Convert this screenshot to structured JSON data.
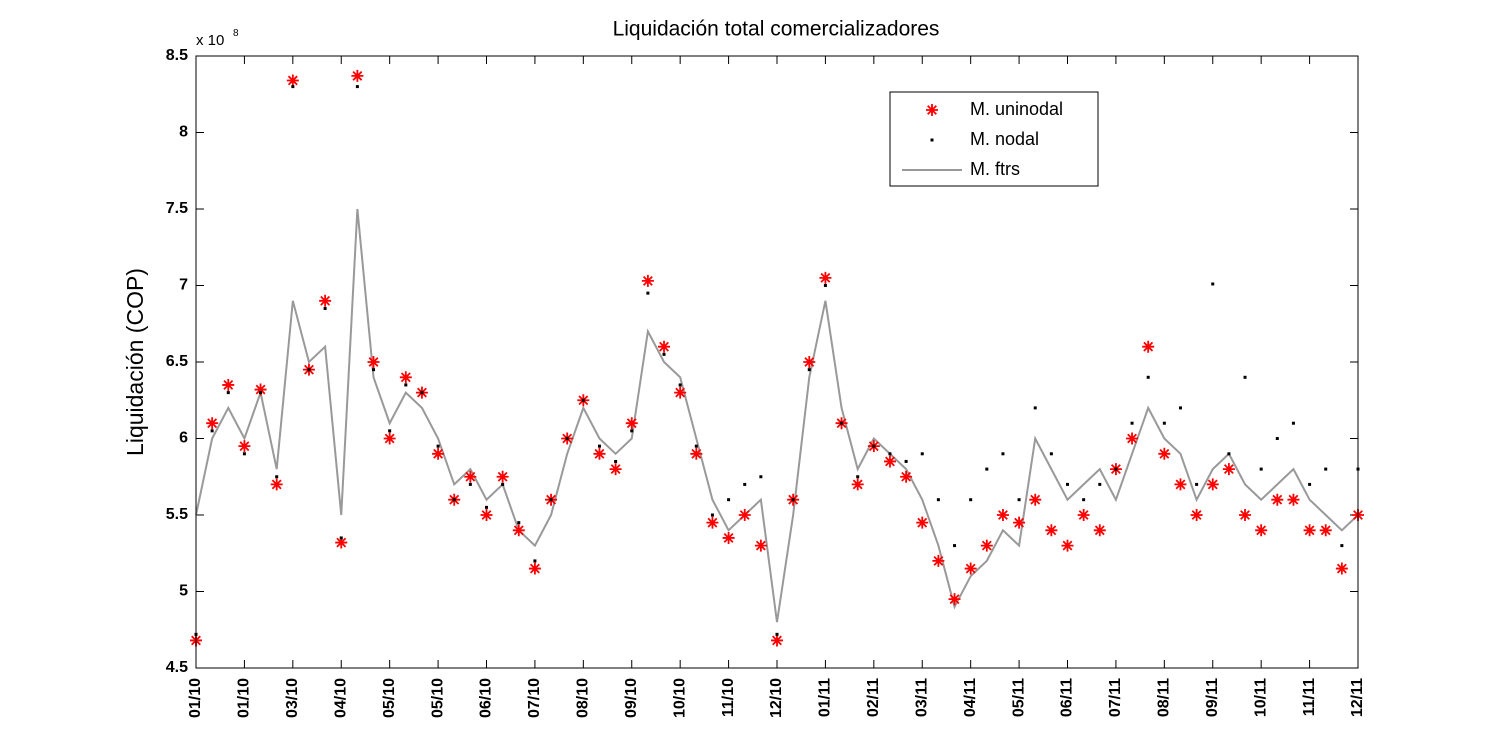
{
  "chart_data": {
    "type": "line",
    "title": "Liquidación total comercializadores",
    "y_label": "Liquidación (COP)",
    "y_multiplier": {
      "base": "x 10",
      "exponent": "8"
    },
    "legend": "upper right",
    "x": [
      0,
      10,
      20,
      30,
      40,
      50,
      60,
      70,
      80,
      90,
      100,
      110,
      120,
      130,
      140,
      150,
      160,
      170,
      180,
      190,
      200,
      210,
      220,
      230,
      240,
      250,
      260,
      270,
      280,
      290,
      300,
      310,
      320,
      330,
      340,
      350,
      360,
      370,
      380,
      390,
      400,
      410,
      420,
      430,
      440,
      450,
      460,
      470,
      480,
      490,
      500,
      510,
      520,
      530,
      540,
      550,
      560,
      570,
      580,
      590,
      600,
      610,
      620,
      630,
      640,
      650,
      660,
      670,
      680,
      690,
      700,
      710,
      720
    ],
    "xlim": [
      0,
      720
    ],
    "xticks": [
      {
        "value": 0,
        "label": "01/10"
      },
      {
        "value": 30,
        "label": "01/10"
      },
      {
        "value": 60,
        "label": "03/10"
      },
      {
        "value": 90,
        "label": "04/10"
      },
      {
        "value": 120,
        "label": "05/10"
      },
      {
        "value": 150,
        "label": "05/10"
      },
      {
        "value": 180,
        "label": "06/10"
      },
      {
        "value": 210,
        "label": "07/10"
      },
      {
        "value": 240,
        "label": "08/10"
      },
      {
        "value": 270,
        "label": "09/10"
      },
      {
        "value": 300,
        "label": "10/10"
      },
      {
        "value": 330,
        "label": "11/10"
      },
      {
        "value": 360,
        "label": "12/10"
      },
      {
        "value": 390,
        "label": "01/11"
      },
      {
        "value": 420,
        "label": "02/11"
      },
      {
        "value": 450,
        "label": "03/11"
      },
      {
        "value": 480,
        "label": "04/11"
      },
      {
        "value": 510,
        "label": "05/11"
      },
      {
        "value": 540,
        "label": "06/11"
      },
      {
        "value": 570,
        "label": "07/11"
      },
      {
        "value": 600,
        "label": "08/11"
      },
      {
        "value": 630,
        "label": "09/11"
      },
      {
        "value": 660,
        "label": "10/11"
      },
      {
        "value": 690,
        "label": "11/11"
      },
      {
        "value": 720,
        "label": "12/11"
      }
    ],
    "ylim": [
      4.5,
      8.5
    ],
    "yticks": [
      4.5,
      5,
      5.5,
      6,
      6.5,
      7,
      7.5,
      8,
      8.5
    ],
    "series": [
      {
        "name": "M. uninodal",
        "color": "#ff0000",
        "style": "asterisk",
        "values": [
          4.68,
          6.1,
          6.35,
          5.95,
          6.32,
          5.7,
          8.34,
          6.45,
          6.9,
          5.32,
          8.37,
          6.5,
          6.0,
          6.4,
          6.3,
          5.9,
          5.6,
          5.75,
          5.5,
          5.75,
          5.4,
          5.15,
          5.6,
          6.0,
          6.25,
          5.9,
          5.8,
          6.1,
          7.03,
          6.6,
          6.3,
          5.9,
          5.45,
          5.35,
          5.5,
          5.3,
          4.68,
          5.6,
          6.5,
          7.05,
          6.1,
          5.7,
          5.95,
          5.85,
          5.75,
          5.45,
          5.2,
          4.95,
          5.15,
          5.3,
          5.5,
          5.45,
          5.6,
          5.4,
          5.3,
          5.5,
          5.4,
          5.8,
          6.0,
          6.6,
          5.9,
          5.7,
          5.5,
          5.7,
          5.8,
          5.5,
          5.4,
          5.6,
          5.6,
          5.4,
          5.4,
          5.15,
          5.5
        ]
      },
      {
        "name": "M. nodal",
        "color": "#000000",
        "style": "dot",
        "values": [
          4.72,
          6.05,
          6.3,
          5.9,
          6.3,
          5.75,
          8.3,
          6.45,
          6.85,
          5.35,
          8.3,
          6.45,
          6.05,
          6.35,
          6.3,
          5.95,
          5.6,
          5.7,
          5.55,
          5.7,
          5.45,
          5.2,
          5.6,
          6.0,
          6.25,
          5.95,
          5.85,
          6.05,
          6.95,
          6.55,
          6.35,
          5.95,
          5.5,
          5.6,
          5.7,
          5.75,
          4.72,
          5.6,
          6.45,
          7.0,
          6.1,
          5.75,
          5.95,
          5.9,
          5.85,
          5.9,
          5.6,
          5.3,
          5.6,
          5.8,
          5.9,
          5.6,
          6.2,
          5.9,
          5.7,
          5.6,
          5.7,
          5.8,
          6.1,
          6.4,
          6.1,
          6.2,
          5.7,
          7.01,
          5.9,
          6.4,
          5.8,
          6.0,
          6.1,
          5.7,
          5.8,
          5.3,
          5.8
        ]
      },
      {
        "name": "M. ftrs",
        "color": "#999999",
        "style": "line",
        "values": [
          5.5,
          6.0,
          6.2,
          6.0,
          6.3,
          5.8,
          6.9,
          6.5,
          6.6,
          5.5,
          7.5,
          6.4,
          6.1,
          6.3,
          6.2,
          6.0,
          5.7,
          5.8,
          5.6,
          5.7,
          5.4,
          5.3,
          5.5,
          5.9,
          6.2,
          6.0,
          5.9,
          6.0,
          6.7,
          6.5,
          6.4,
          6.0,
          5.6,
          5.4,
          5.5,
          5.6,
          4.8,
          5.5,
          6.4,
          6.9,
          6.2,
          5.8,
          6.0,
          5.9,
          5.8,
          5.6,
          5.3,
          4.9,
          5.1,
          5.2,
          5.4,
          5.3,
          6.0,
          5.8,
          5.6,
          5.7,
          5.8,
          5.6,
          5.9,
          6.2,
          6.0,
          5.9,
          5.6,
          5.8,
          5.9,
          5.7,
          5.6,
          5.7,
          5.8,
          5.6,
          5.5,
          5.4,
          5.5
        ]
      }
    ]
  }
}
